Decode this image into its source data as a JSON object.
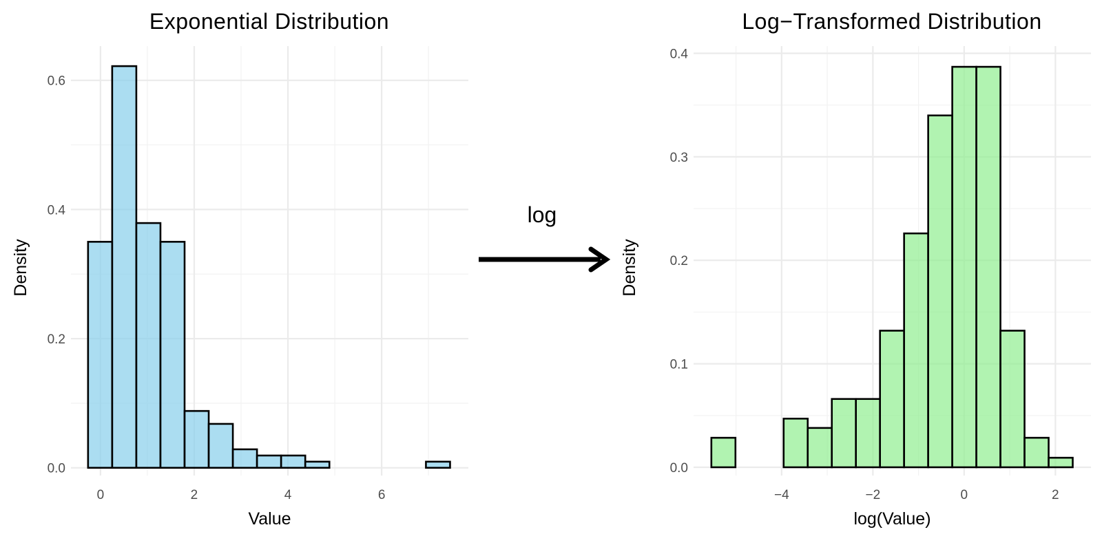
{
  "arrow_label": "log",
  "colors": {
    "left_fill": "#87CEEB",
    "right_fill": "#90EE90",
    "stroke": "#000000",
    "grid": "#EBEBEB"
  },
  "chart_data": [
    {
      "type": "bar",
      "title": "Exponential Distribution",
      "xlabel": "Value",
      "ylabel": "Density",
      "bin_start": -0.265,
      "bin_width": 0.515,
      "values": [
        0.35,
        0.622,
        0.379,
        0.35,
        0.088,
        0.068,
        0.0286,
        0.019,
        0.019,
        0.0095,
        0,
        0,
        0,
        0,
        0.0095
      ],
      "xlim": [
        -0.63,
        7.85
      ],
      "ylim": [
        -0.012,
        0.653
      ],
      "xticks": [
        0,
        2,
        4,
        6
      ],
      "yticks": [
        0.0,
        0.2,
        0.4,
        0.6
      ],
      "ytick_labels": [
        "0.0",
        "0.2",
        "0.4",
        "0.6"
      ],
      "grid": true
    },
    {
      "type": "bar",
      "title": "Log−Transformed Distribution",
      "xlabel": "log(Value)",
      "ylabel": "Density",
      "bin_start": -5.54,
      "bin_width": 0.528,
      "values": [
        0.0285,
        0,
        0,
        0.047,
        0.038,
        0.066,
        0.066,
        0.132,
        0.226,
        0.34,
        0.387,
        0.387,
        0.132,
        0.0285,
        0.0092
      ],
      "xlim": [
        -5.93,
        2.78
      ],
      "ylim": [
        -0.008,
        0.407
      ],
      "xticks": [
        -4,
        -2,
        0,
        2
      ],
      "xtick_labels": [
        "−4",
        "−2",
        "0",
        "2"
      ],
      "yticks": [
        0.0,
        0.1,
        0.2,
        0.3,
        0.4
      ],
      "ytick_labels": [
        "0.0",
        "0.1",
        "0.2",
        "0.3",
        "0.4"
      ],
      "grid": true
    }
  ]
}
